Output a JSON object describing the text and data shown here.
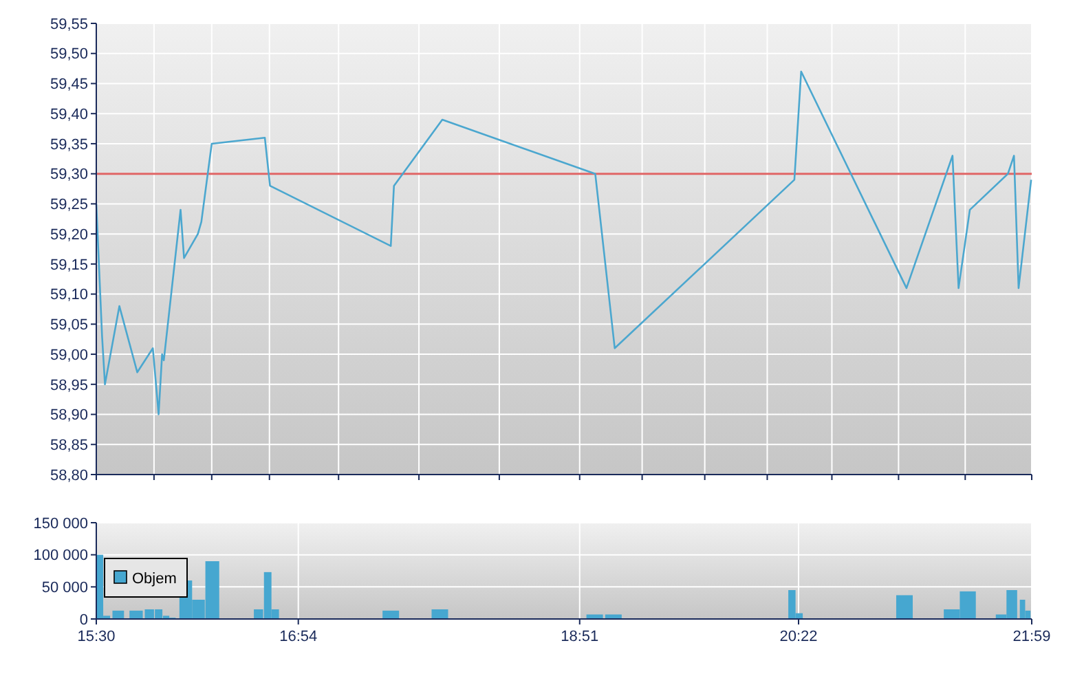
{
  "chart_data": [
    {
      "type": "line",
      "xlim": [
        15.5,
        21.983
      ],
      "xticks": [
        {
          "value": 15.5,
          "label": null
        },
        {
          "value": 15.9,
          "label": null
        },
        {
          "value": 16.3,
          "label": null
        },
        {
          "value": 16.7,
          "label": null
        },
        {
          "value": 17.179,
          "label": null
        },
        {
          "value": 17.736,
          "label": null
        },
        {
          "value": 18.293,
          "label": null
        },
        {
          "value": 18.85,
          "label": null
        },
        {
          "value": 19.283,
          "label": null
        },
        {
          "value": 19.717,
          "label": null
        },
        {
          "value": 20.15,
          "label": null
        },
        {
          "value": 20.598,
          "label": null
        },
        {
          "value": 21.06,
          "label": null
        },
        {
          "value": 21.522,
          "label": null
        },
        {
          "value": 21.983,
          "label": null
        }
      ],
      "ylim": [
        58.8,
        59.55
      ],
      "yticks": [
        {
          "value": 58.8,
          "label": "58,80"
        },
        {
          "value": 58.85,
          "label": "58,85"
        },
        {
          "value": 58.9,
          "label": "58,90"
        },
        {
          "value": 58.95,
          "label": "58,95"
        },
        {
          "value": 59,
          "label": "59,00"
        },
        {
          "value": 59.05,
          "label": "59,05"
        },
        {
          "value": 59.1,
          "label": "59,10"
        },
        {
          "value": 59.15,
          "label": "59,15"
        },
        {
          "value": 59.2,
          "label": "59,20"
        },
        {
          "value": 59.25,
          "label": "59,25"
        },
        {
          "value": 59.3,
          "label": "59,30"
        },
        {
          "value": 59.35,
          "label": "59,35"
        },
        {
          "value": 59.4,
          "label": "59,40"
        },
        {
          "value": 59.45,
          "label": "59,45"
        },
        {
          "value": 59.5,
          "label": "59,50"
        },
        {
          "value": 59.55,
          "label": "59,55"
        }
      ],
      "tick_labels": "y",
      "grid": true,
      "legend": false,
      "ref_lines": [
        {
          "axis": "y",
          "value": 59.3,
          "color": "#e06666"
        }
      ],
      "series": [
        {
          "color": "#4ba7cf",
          "x": [
            15.5,
            15.54,
            15.56,
            15.66,
            15.784,
            15.892,
            15.932,
            15.956,
            15.968,
            16.084,
            16.108,
            16.132,
            16.204,
            16.228,
            16.3,
            16.668,
            16.704,
            17.541,
            17.563,
            17.898,
            18.958,
            19.093,
            20.338,
            20.385,
            21.115,
            21.434,
            21.476,
            21.554,
            21.818,
            21.86,
            21.892,
            21.979
          ],
          "values": [
            59.25,
            59.03,
            58.95,
            59.08,
            58.97,
            59.01,
            58.9,
            59.0,
            58.99,
            59.24,
            59.16,
            59.17,
            59.2,
            59.22,
            59.35,
            59.36,
            59.28,
            59.18,
            59.28,
            59.39,
            59.3,
            59.01,
            59.29,
            59.47,
            59.11,
            59.33,
            59.11,
            59.24,
            59.3,
            59.33,
            59.11,
            59.29
          ]
        }
      ]
    },
    {
      "type": "bar",
      "xlim": [
        15.5,
        21.983
      ],
      "xticks": [
        {
          "value": 15.5,
          "label": "15:30"
        },
        {
          "value": 16.9,
          "label": "16:54"
        },
        {
          "value": 18.85,
          "label": "18:51"
        },
        {
          "value": 20.367,
          "label": "20:22"
        },
        {
          "value": 21.983,
          "label": "21:59"
        }
      ],
      "ylim": [
        0,
        150000
      ],
      "yticks": [
        {
          "value": 0,
          "label": "0"
        },
        {
          "value": 50000,
          "label": "50 000"
        },
        {
          "value": 100000,
          "label": "100 000"
        },
        {
          "value": 150000,
          "label": "150 000"
        }
      ],
      "grid": true,
      "legend": "left",
      "series": [
        {
          "name": "Objem",
          "color": "#46a7d0",
          "x": [
            15.524,
            15.572,
            15.652,
            15.776,
            15.868,
            15.932,
            15.984,
            16.028,
            16.12,
            16.208,
            16.304,
            16.624,
            16.688,
            16.74,
            17.541,
            17.881,
            18.954,
            19.084,
            20.321,
            20.371,
            21.101,
            21.429,
            21.54,
            21.771,
            21.845,
            21.919,
            21.956
          ],
          "values": [
            100000,
            5000,
            13000,
            13000,
            15000,
            15000,
            5000,
            2000,
            60000,
            30000,
            90000,
            15000,
            73000,
            15000,
            13000,
            15000,
            7000,
            7000,
            45000,
            9000,
            37000,
            15000,
            43000,
            7000,
            45000,
            30000,
            13000
          ]
        }
      ]
    }
  ]
}
